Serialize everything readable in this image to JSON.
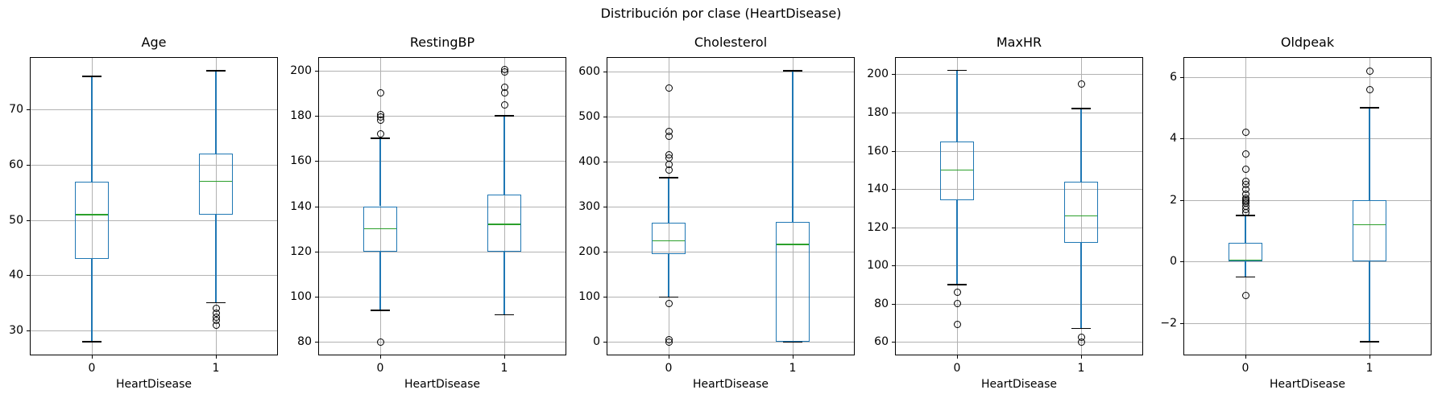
{
  "figure": {
    "suptitle": "Distribución por clase (HeartDisease)",
    "background": "#ffffff",
    "colors": {
      "box": "#1f77b4",
      "whisker": "#1f77b4",
      "median": "#2ca02c",
      "cap": "#000000",
      "flier": "#000000",
      "grid": "#b2b2b2",
      "spine": "#000000",
      "text": "#000000"
    },
    "grid": true
  },
  "chart_data": [
    {
      "type": "boxplot",
      "title": "Age",
      "xlabel": "HeartDisease",
      "categories": [
        "0",
        "1"
      ],
      "ylim": [
        25.5,
        79.5
      ],
      "yticks": [
        30,
        40,
        50,
        60,
        70
      ],
      "groups": [
        {
          "label": "0",
          "whislo": 28,
          "q1": 43,
          "med": 51,
          "q3": 57,
          "whishi": 76,
          "fliers": []
        },
        {
          "label": "1",
          "whislo": 35,
          "q1": 51,
          "med": 57,
          "q3": 62,
          "whishi": 77,
          "fliers": [
            31,
            31.8,
            32.4,
            33.2,
            34
          ]
        }
      ]
    },
    {
      "type": "boxplot",
      "title": "RestingBP",
      "xlabel": "HeartDisease",
      "categories": [
        "0",
        "1"
      ],
      "ylim": [
        74,
        206
      ],
      "yticks": [
        80,
        100,
        120,
        140,
        160,
        180,
        200
      ],
      "groups": [
        {
          "label": "0",
          "whislo": 94,
          "q1": 120,
          "med": 130,
          "q3": 140,
          "whishi": 170,
          "fliers": [
            80,
            172,
            178,
            179.5,
            180.5,
            190
          ]
        },
        {
          "label": "1",
          "whislo": 92,
          "q1": 120,
          "med": 132,
          "q3": 145,
          "whishi": 180,
          "fliers": [
            185,
            190,
            192.5,
            199.5,
            200.5
          ]
        }
      ]
    },
    {
      "type": "boxplot",
      "title": "Cholesterol",
      "xlabel": "HeartDisease",
      "categories": [
        "0",
        "1"
      ],
      "ylim": [
        -30,
        633
      ],
      "yticks": [
        0,
        100,
        200,
        300,
        400,
        500,
        600
      ],
      "groups": [
        {
          "label": "0",
          "whislo": 100,
          "q1": 196,
          "med": 225,
          "q3": 265,
          "whishi": 365,
          "fliers": [
            0,
            4,
            85,
            382,
            394,
            409,
            415,
            457,
            468,
            564
          ]
        },
        {
          "label": "1",
          "whislo": 0,
          "q1": 0,
          "med": 217,
          "q3": 267,
          "whishi": 603,
          "fliers": []
        }
      ]
    },
    {
      "type": "boxplot",
      "title": "MaxHR",
      "xlabel": "HeartDisease",
      "categories": [
        "0",
        "1"
      ],
      "ylim": [
        53,
        209
      ],
      "yticks": [
        60,
        80,
        100,
        120,
        140,
        160,
        180,
        200
      ],
      "groups": [
        {
          "label": "0",
          "whislo": 90,
          "q1": 134,
          "med": 150,
          "q3": 165,
          "whishi": 202,
          "fliers": [
            69,
            80,
            86
          ]
        },
        {
          "label": "1",
          "whislo": 67,
          "q1": 112,
          "med": 126,
          "q3": 144,
          "whishi": 182,
          "fliers": [
            60,
            62.5,
            195
          ]
        }
      ]
    },
    {
      "type": "boxplot",
      "title": "Oldpeak",
      "xlabel": "HeartDisease",
      "categories": [
        "0",
        "1"
      ],
      "ylim": [
        -3.05,
        6.65
      ],
      "yticks": [
        -2,
        0,
        2,
        4,
        6
      ],
      "groups": [
        {
          "label": "0",
          "whislo": -0.5,
          "q1": 0,
          "med": 0.05,
          "q3": 0.6,
          "whishi": 1.5,
          "fliers": [
            -1.1,
            1.6,
            1.7,
            1.8,
            1.9,
            1.95,
            2.0,
            2.05,
            2.2,
            2.35,
            2.5,
            2.6,
            3.0,
            3.5,
            4.2
          ]
        },
        {
          "label": "1",
          "whislo": -2.6,
          "q1": 0,
          "med": 1.2,
          "q3": 2.0,
          "whishi": 5.0,
          "fliers": [
            5.6,
            6.2
          ]
        }
      ]
    }
  ]
}
